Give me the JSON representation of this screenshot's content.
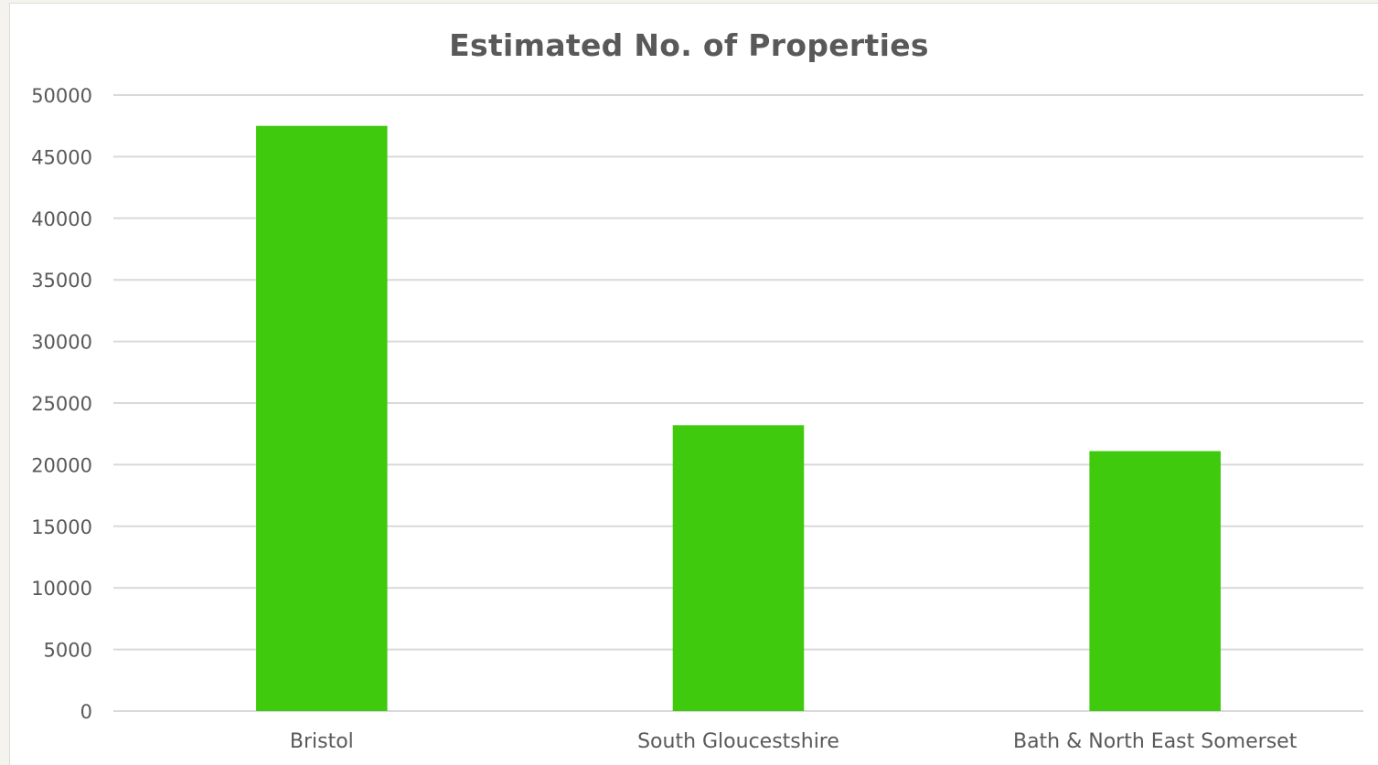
{
  "chart_data": {
    "type": "bar",
    "title": "Estimated No. of Properties",
    "xlabel": "",
    "ylabel": "",
    "categories": [
      "Bristol",
      "South Gloucestshire",
      "Bath & North East Somerset"
    ],
    "values": [
      47500,
      23200,
      21100
    ],
    "ylim": [
      0,
      50000
    ],
    "yticks": [
      "0",
      "5000",
      "10000",
      "15000",
      "20000",
      "25000",
      "30000",
      "35000",
      "40000",
      "45000",
      "50000"
    ],
    "grid": true,
    "legend": "none",
    "bar_color": "#3fca0e",
    "grid_color": "#d9d9d9"
  }
}
